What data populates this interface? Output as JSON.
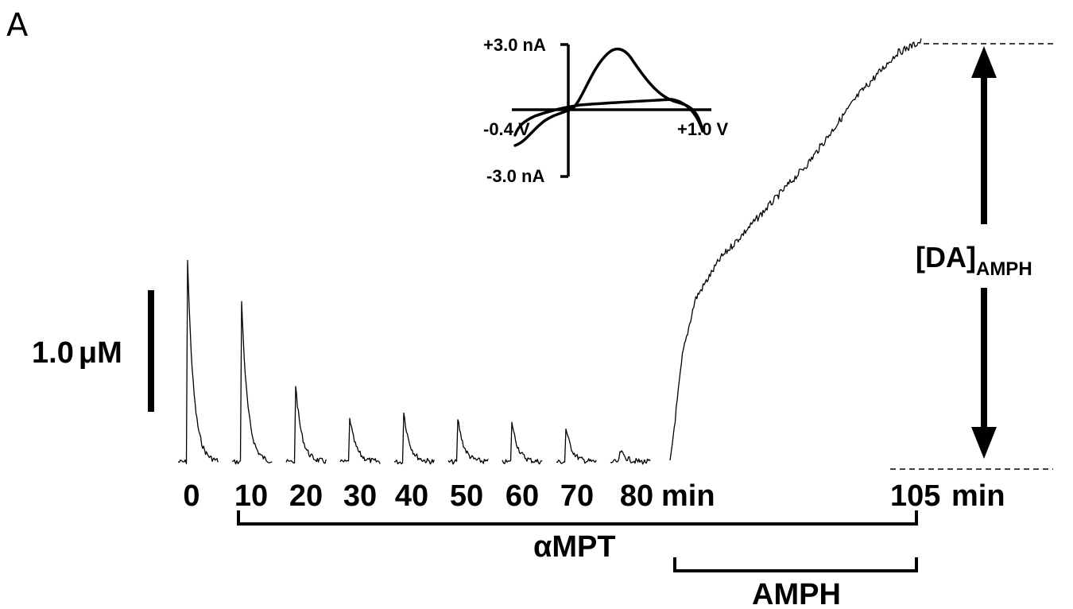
{
  "panel_label": "A",
  "scale_bar_label": "1.0",
  "scale_bar_unit": "μM",
  "time_labels": [
    "0",
    "10",
    "20",
    "30",
    "40",
    "50",
    "60",
    "70",
    "80"
  ],
  "time_unit": "min",
  "end_time_label": "105",
  "end_time_unit": "min",
  "drug_labels": {
    "ampt": "αMPT",
    "amph": "AMPH"
  },
  "amph_level_label": {
    "main": "[DA]",
    "subscript": "AMPH"
  },
  "inset": {
    "y_top": "+3.0 nA",
    "y_bottom": "-3.0 nA",
    "x_left": "-0.4 V",
    "x_right": "+1.0 V"
  },
  "chart_data": [
    {
      "type": "line",
      "description_source": "evoked dopamine release traces",
      "scale_bar": {
        "value": 1.0,
        "unit": "μM"
      },
      "series": [
        {
          "time_min": 0,
          "peak_uM": 1.53
        },
        {
          "time_min": 10,
          "peak_uM": 1.22
        },
        {
          "time_min": 20,
          "peak_uM": 0.58
        },
        {
          "time_min": 30,
          "peak_uM": 0.34
        },
        {
          "time_min": 40,
          "peak_uM": 0.38
        },
        {
          "time_min": 50,
          "peak_uM": 0.33
        },
        {
          "time_min": 60,
          "peak_uM": 0.31
        },
        {
          "time_min": 70,
          "peak_uM": 0.26
        },
        {
          "time_min": 80,
          "peak_uM": 0.09
        }
      ],
      "amph_response": {
        "start_min": 80,
        "end_min": 105,
        "plateau_uM": 3.09,
        "curve_uM": [
          [
            0,
            0.0
          ],
          [
            0.05,
            0.8
          ],
          [
            0.1,
            1.2
          ],
          [
            0.2,
            1.5
          ],
          [
            0.35,
            1.8
          ],
          [
            0.55,
            2.2
          ],
          [
            0.75,
            2.7
          ],
          [
            0.9,
            3.0
          ],
          [
            1.0,
            3.09
          ]
        ]
      }
    },
    {
      "type": "line",
      "title": "inset cyclic voltammogram",
      "x_range_V": [
        -0.4,
        1.0
      ],
      "y_range_nA": [
        -3.0,
        3.0
      ],
      "peak_nA": 2.9
    }
  ]
}
